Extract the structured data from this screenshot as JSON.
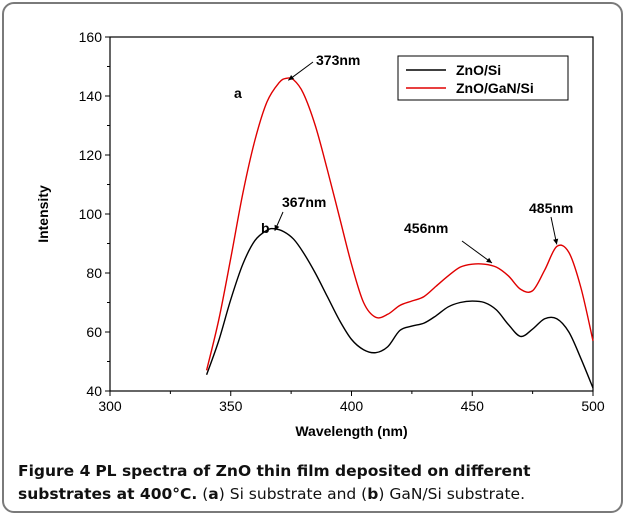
{
  "chart_data": {
    "type": "line",
    "title": "",
    "xlabel": "Wavelength (nm)",
    "ylabel": "Intensity",
    "xlim": [
      300,
      500
    ],
    "ylim": [
      40,
      160
    ],
    "xticks": [
      300,
      350,
      400,
      450,
      500
    ],
    "yticks": [
      40,
      60,
      80,
      100,
      120,
      140,
      160
    ],
    "grid": false,
    "legend_position": "top-right",
    "series": [
      {
        "name": "ZnO/Si",
        "color": "#000000",
        "x": [
          340,
          345,
          350,
          355,
          360,
          365,
          368,
          372,
          376,
          380,
          385,
          390,
          395,
          400,
          405,
          410,
          415,
          420,
          425,
          430,
          435,
          440,
          445,
          450,
          455,
          460,
          465,
          470,
          475,
          480,
          485,
          490,
          495,
          500
        ],
        "y": [
          45.5,
          57,
          71,
          83,
          91,
          94.5,
          95,
          94,
          91.5,
          87,
          80,
          72,
          64,
          57.5,
          54,
          53,
          55,
          60.5,
          62,
          63,
          65.5,
          68.5,
          70,
          70.5,
          70,
          67.5,
          62.5,
          58.5,
          61,
          64.5,
          64.5,
          60,
          51,
          41
        ]
      },
      {
        "name": "ZnO/GaN/Si",
        "color": "#e00000",
        "x": [
          340,
          345,
          350,
          355,
          360,
          365,
          370,
          373,
          376,
          380,
          385,
          390,
          395,
          400,
          405,
          410,
          415,
          420,
          425,
          430,
          435,
          440,
          445,
          450,
          455,
          460,
          465,
          470,
          475,
          480,
          485,
          490,
          495,
          500
        ],
        "y": [
          47,
          64,
          85,
          107,
          125,
          138,
          144.5,
          146,
          145.5,
          141,
          130,
          115,
          99,
          83,
          70,
          65,
          66,
          69,
          70.5,
          72,
          75.5,
          79,
          82,
          83,
          83,
          82,
          79,
          74.5,
          74,
          81,
          89,
          87,
          75,
          57
        ]
      }
    ],
    "annotations": [
      {
        "text": "373nm",
        "x": 373,
        "y": 146
      },
      {
        "text": "367nm",
        "x": 367,
        "y": 95
      },
      {
        "text": "456nm",
        "x": 454,
        "y": 83
      },
      {
        "text": "485nm",
        "x": 485,
        "y": 89
      },
      {
        "text": "a",
        "x": 361,
        "y": 143
      },
      {
        "text": "b",
        "x": 357,
        "y": 96
      }
    ]
  },
  "caption": {
    "label": "Figure 4",
    "title": "PL spectra of ZnO thin film deposited on different substrates at 400°C.",
    "part_a_open": "(",
    "part_a_letter": "a",
    "part_a_text": ") Si substrate and (",
    "part_b_letter": "b",
    "part_b_text": ") GaN/Si substrate."
  }
}
